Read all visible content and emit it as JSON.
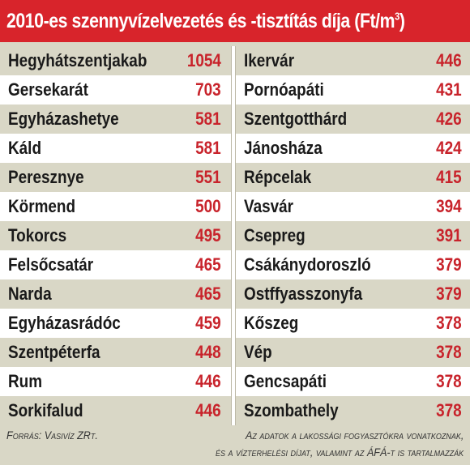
{
  "title": {
    "main": "2010-es szennyvízelvezetés és -tisztítás díja (Ft/m",
    "sup": "3",
    "end": ")"
  },
  "left": [
    {
      "name": "Hegyhátszentjakab",
      "value": "1054"
    },
    {
      "name": "Gersekarát",
      "value": "703"
    },
    {
      "name": "Egyházashetye",
      "value": "581"
    },
    {
      "name": "Káld",
      "value": "581"
    },
    {
      "name": "Peresznye",
      "value": "551"
    },
    {
      "name": "Körmend",
      "value": "500"
    },
    {
      "name": "Tokorcs",
      "value": "495"
    },
    {
      "name": "Felsőcsatár",
      "value": "465"
    },
    {
      "name": "Narda",
      "value": "465"
    },
    {
      "name": "Egyházasrádóc",
      "value": "459"
    },
    {
      "name": "Szentpéterfa",
      "value": "448"
    },
    {
      "name": "Rum",
      "value": "446"
    },
    {
      "name": "Sorkifalud",
      "value": "446"
    }
  ],
  "right": [
    {
      "name": "Ikervár",
      "value": "446"
    },
    {
      "name": "Pornóapáti",
      "value": "431"
    },
    {
      "name": "Szentgotthárd",
      "value": "426"
    },
    {
      "name": "Jánosháza",
      "value": "424"
    },
    {
      "name": "Répcelak",
      "value": "415"
    },
    {
      "name": "Vasvár",
      "value": "394"
    },
    {
      "name": "Csepreg",
      "value": "391"
    },
    {
      "name": "Csákánydoroszló",
      "value": "379"
    },
    {
      "name": "Ostffyasszonyfa",
      "value": "379"
    },
    {
      "name": "Kőszeg",
      "value": "378"
    },
    {
      "name": "Vép",
      "value": "378"
    },
    {
      "name": "Gencsapáti",
      "value": "378"
    },
    {
      "name": "Szombathely",
      "value": "378"
    }
  ],
  "footer": {
    "source": "Forrás: Vasivíz ZRt.",
    "note_line1": "Az adatok a lakossági fogyasztókra vonatkoznak,",
    "note_line2": "és a vízterhelési díjat, valamint az ÁFÁ-t is tartalmazzák"
  },
  "colors": {
    "accent": "#d8242b",
    "shade": "#d9d7c6",
    "value": "#c8232b"
  }
}
